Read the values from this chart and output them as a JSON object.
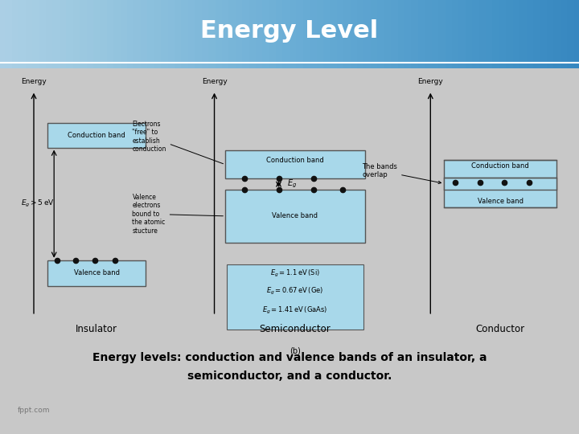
{
  "title": "Energy Level",
  "title_bg_left": "#1a3590",
  "title_bg_right": "#2244aa",
  "title_color": "#ffffff",
  "title_fontsize": 22,
  "caption_line1": "Energy levels: conduction and valence bands of an insulator, a",
  "caption_line2": "semiconductor, and a conductor.",
  "caption_bg": "#ffff00",
  "caption_color": "#000000",
  "caption_fontsize": 10,
  "diagram_bg": "#c8c8c8",
  "inner_bg": "#e0e0e0",
  "band_color": "#a8d8ea",
  "band_edge": "#555555",
  "dot_color": "#111111",
  "labels": [
    "Insulator",
    "Semiconductor",
    "Conductor"
  ],
  "energy_label": "Energy",
  "fppt_text": "fppt.com",
  "bottom_bar_color": "#05050f",
  "white_line_color": "#ffffff"
}
